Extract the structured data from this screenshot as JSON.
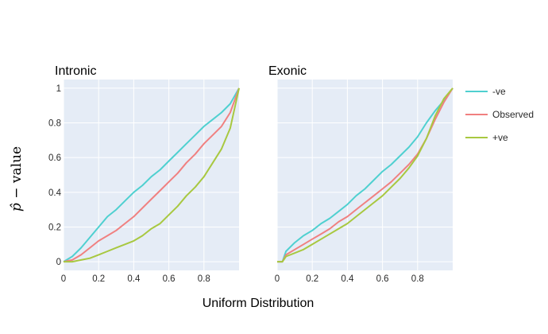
{
  "chart_data": {
    "type": "line",
    "xlabel": "Uniform Distribution",
    "ylabel_parts": [
      "p̂",
      " − ",
      "value"
    ],
    "xlim": [
      0,
      1
    ],
    "ylim": [
      -0.05,
      1.05
    ],
    "grid": true,
    "legend_position": "top-right",
    "colors": {
      "neg": "#4fd0d0",
      "observed": "#f08080",
      "pos": "#a8c840",
      "plot_bg": "#e5ecf6",
      "grid": "#ffffff"
    },
    "legend": [
      {
        "key": "neg",
        "label": "-ve"
      },
      {
        "key": "observed",
        "label": "Observed"
      },
      {
        "key": "pos",
        "label": "+ve"
      }
    ],
    "xticks": [
      {
        "value": 0,
        "label": "0"
      },
      {
        "value": 0.2,
        "label": "0.2"
      },
      {
        "value": 0.4,
        "label": "0.4"
      },
      {
        "value": 0.6,
        "label": "0.6"
      },
      {
        "value": 0.8,
        "label": "0.8"
      }
    ],
    "yticks": [
      {
        "value": 0,
        "label": "0"
      },
      {
        "value": 0.2,
        "label": "0.2"
      },
      {
        "value": 0.4,
        "label": "0.4"
      },
      {
        "value": 0.6,
        "label": "0.6"
      },
      {
        "value": 0.8,
        "label": "0.8"
      },
      {
        "value": 1,
        "label": "1"
      }
    ],
    "panels": [
      {
        "title": "Intronic",
        "series": [
          {
            "key": "neg",
            "name": "-ve",
            "x": [
              0,
              0.05,
              0.1,
              0.15,
              0.2,
              0.25,
              0.3,
              0.35,
              0.4,
              0.45,
              0.5,
              0.55,
              0.6,
              0.65,
              0.7,
              0.75,
              0.8,
              0.85,
              0.9,
              0.95,
              1.0
            ],
            "y": [
              0,
              0.03,
              0.08,
              0.14,
              0.2,
              0.26,
              0.3,
              0.35,
              0.4,
              0.44,
              0.49,
              0.53,
              0.58,
              0.63,
              0.68,
              0.73,
              0.78,
              0.82,
              0.86,
              0.91,
              1.0
            ]
          },
          {
            "key": "observed",
            "name": "Observed",
            "x": [
              0,
              0.05,
              0.1,
              0.15,
              0.2,
              0.25,
              0.3,
              0.35,
              0.4,
              0.45,
              0.5,
              0.55,
              0.6,
              0.65,
              0.7,
              0.75,
              0.8,
              0.85,
              0.9,
              0.95,
              1.0
            ],
            "y": [
              0,
              0.01,
              0.04,
              0.08,
              0.12,
              0.15,
              0.18,
              0.22,
              0.26,
              0.31,
              0.36,
              0.41,
              0.46,
              0.51,
              0.57,
              0.62,
              0.68,
              0.73,
              0.78,
              0.86,
              1.0
            ]
          },
          {
            "key": "pos",
            "name": "+ve",
            "x": [
              0,
              0.05,
              0.1,
              0.15,
              0.2,
              0.25,
              0.3,
              0.35,
              0.4,
              0.45,
              0.5,
              0.55,
              0.6,
              0.65,
              0.7,
              0.75,
              0.8,
              0.85,
              0.9,
              0.95,
              1.0
            ],
            "y": [
              0,
              0.0,
              0.01,
              0.02,
              0.04,
              0.06,
              0.08,
              0.1,
              0.12,
              0.15,
              0.19,
              0.22,
              0.27,
              0.32,
              0.38,
              0.43,
              0.49,
              0.57,
              0.65,
              0.77,
              1.0
            ]
          }
        ]
      },
      {
        "title": "Exonic",
        "series": [
          {
            "key": "neg",
            "name": "-ve",
            "x": [
              0,
              0.03,
              0.05,
              0.1,
              0.15,
              0.2,
              0.25,
              0.3,
              0.35,
              0.4,
              0.45,
              0.5,
              0.55,
              0.6,
              0.65,
              0.7,
              0.75,
              0.8,
              0.85,
              0.9,
              0.95,
              1.0
            ],
            "y": [
              0,
              0.0,
              0.06,
              0.11,
              0.15,
              0.18,
              0.22,
              0.25,
              0.29,
              0.33,
              0.38,
              0.42,
              0.47,
              0.52,
              0.56,
              0.61,
              0.66,
              0.72,
              0.8,
              0.87,
              0.93,
              1.0
            ]
          },
          {
            "key": "observed",
            "name": "Observed",
            "x": [
              0,
              0.03,
              0.05,
              0.1,
              0.15,
              0.2,
              0.25,
              0.3,
              0.35,
              0.4,
              0.45,
              0.5,
              0.55,
              0.6,
              0.65,
              0.7,
              0.75,
              0.8,
              0.85,
              0.9,
              0.95,
              1.0
            ],
            "y": [
              0,
              0.0,
              0.04,
              0.07,
              0.1,
              0.13,
              0.16,
              0.19,
              0.23,
              0.26,
              0.3,
              0.34,
              0.38,
              0.42,
              0.46,
              0.51,
              0.56,
              0.62,
              0.71,
              0.82,
              0.92,
              1.0
            ]
          },
          {
            "key": "pos",
            "name": "+ve",
            "x": [
              0,
              0.03,
              0.05,
              0.1,
              0.15,
              0.2,
              0.25,
              0.3,
              0.35,
              0.4,
              0.45,
              0.5,
              0.55,
              0.6,
              0.65,
              0.7,
              0.75,
              0.8,
              0.85,
              0.9,
              0.95,
              1.0
            ],
            "y": [
              0,
              0.0,
              0.03,
              0.05,
              0.07,
              0.1,
              0.13,
              0.16,
              0.19,
              0.22,
              0.26,
              0.3,
              0.34,
              0.38,
              0.43,
              0.48,
              0.54,
              0.61,
              0.71,
              0.84,
              0.94,
              1.0
            ]
          }
        ]
      }
    ]
  }
}
